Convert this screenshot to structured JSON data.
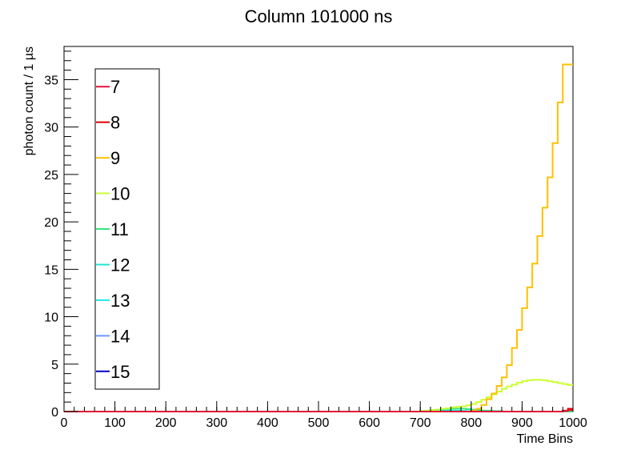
{
  "chart_data": {
    "type": "line",
    "title": "Column 101000 ns",
    "xlabel": "Time Bins",
    "ylabel": "photon count / 1 µs",
    "xlim": [
      0,
      1000
    ],
    "ylim": [
      0,
      38.5
    ],
    "xticks": [
      0,
      100,
      200,
      300,
      400,
      500,
      600,
      700,
      800,
      900,
      1000
    ],
    "yticks": [
      0,
      5,
      10,
      15,
      20,
      25,
      30,
      35
    ],
    "grid": false,
    "legend_position": "left",
    "x": [
      700,
      710,
      720,
      730,
      740,
      750,
      760,
      770,
      780,
      790,
      800,
      810,
      820,
      830,
      840,
      850,
      860,
      870,
      880,
      890,
      900,
      910,
      920,
      930,
      940,
      950,
      960,
      970,
      980,
      990
    ],
    "series": [
      {
        "name": "7",
        "color": "#e8143a",
        "values": [
          0,
          0,
          0,
          0,
          0,
          0,
          0,
          0,
          0,
          0,
          0,
          0,
          0,
          0,
          0,
          0,
          0,
          0,
          0,
          0,
          0,
          0,
          0,
          0,
          0,
          0,
          0,
          0,
          0.05,
          0.15
        ]
      },
      {
        "name": "8",
        "color": "#dd0000",
        "values": [
          0,
          0,
          0,
          0,
          0,
          0,
          0,
          0,
          0,
          0,
          0,
          0,
          0,
          0,
          0,
          0,
          0,
          0,
          0,
          0,
          0,
          0,
          0,
          0,
          0,
          0,
          0,
          0,
          0.1,
          0.3
        ]
      },
      {
        "name": "9",
        "color": "#ffc000",
        "values": [
          0,
          0,
          0,
          0,
          0,
          0,
          0,
          0,
          0,
          0,
          0.1,
          0.3,
          0.7,
          1.3,
          1.9,
          2.7,
          3.6,
          4.9,
          6.7,
          8.6,
          10.9,
          13.1,
          15.6,
          18.5,
          21.5,
          24.7,
          28.3,
          32.6,
          36.6,
          36.6
        ]
      },
      {
        "name": "10",
        "color": "#ccff33",
        "values": [
          0.05,
          0.1,
          0.15,
          0.2,
          0.3,
          0.35,
          0.45,
          0.5,
          0.55,
          0.65,
          0.8,
          1.0,
          1.25,
          1.5,
          1.8,
          2.1,
          2.4,
          2.65,
          2.85,
          3.05,
          3.2,
          3.3,
          3.35,
          3.35,
          3.3,
          3.2,
          3.1,
          3.0,
          2.9,
          2.8
        ]
      },
      {
        "name": "11",
        "color": "#33e680",
        "values": [
          0.05,
          0.1,
          0.15,
          0.2,
          0.25,
          0.3,
          0.3,
          0.3,
          0.3,
          0.25,
          0.2,
          0.15,
          0.1,
          0.1,
          0.05,
          0.05,
          0,
          0,
          0,
          0,
          0,
          0,
          0,
          0,
          0,
          0,
          0,
          0,
          0,
          0
        ]
      },
      {
        "name": "12",
        "color": "#22e6cc",
        "values": [
          0.02,
          0.05,
          0.08,
          0.1,
          0.12,
          0.12,
          0.1,
          0.08,
          0.06,
          0.04,
          0.02,
          0.01,
          0,
          0,
          0,
          0,
          0,
          0,
          0,
          0,
          0,
          0,
          0,
          0,
          0,
          0,
          0,
          0,
          0,
          0
        ]
      },
      {
        "name": "13",
        "color": "#22e6e6",
        "values": [
          0.01,
          0.02,
          0.03,
          0.04,
          0.04,
          0.03,
          0.02,
          0.01,
          0,
          0,
          0,
          0,
          0,
          0,
          0,
          0,
          0,
          0,
          0,
          0,
          0,
          0,
          0,
          0,
          0,
          0,
          0,
          0,
          0,
          0
        ]
      },
      {
        "name": "14",
        "color": "#6699ff",
        "values": [
          0,
          0,
          0,
          0,
          0,
          0,
          0,
          0,
          0,
          0,
          0,
          0,
          0,
          0,
          0,
          0,
          0,
          0,
          0,
          0,
          0,
          0,
          0,
          0,
          0,
          0,
          0,
          0,
          0,
          0
        ]
      },
      {
        "name": "15",
        "color": "#0000cc",
        "values": [
          0,
          0,
          0,
          0,
          0,
          0,
          0,
          0,
          0,
          0,
          0,
          0,
          0,
          0,
          0,
          0,
          0,
          0,
          0,
          0,
          0,
          0,
          0,
          0,
          0,
          0,
          0,
          0,
          0,
          0
        ]
      }
    ]
  }
}
